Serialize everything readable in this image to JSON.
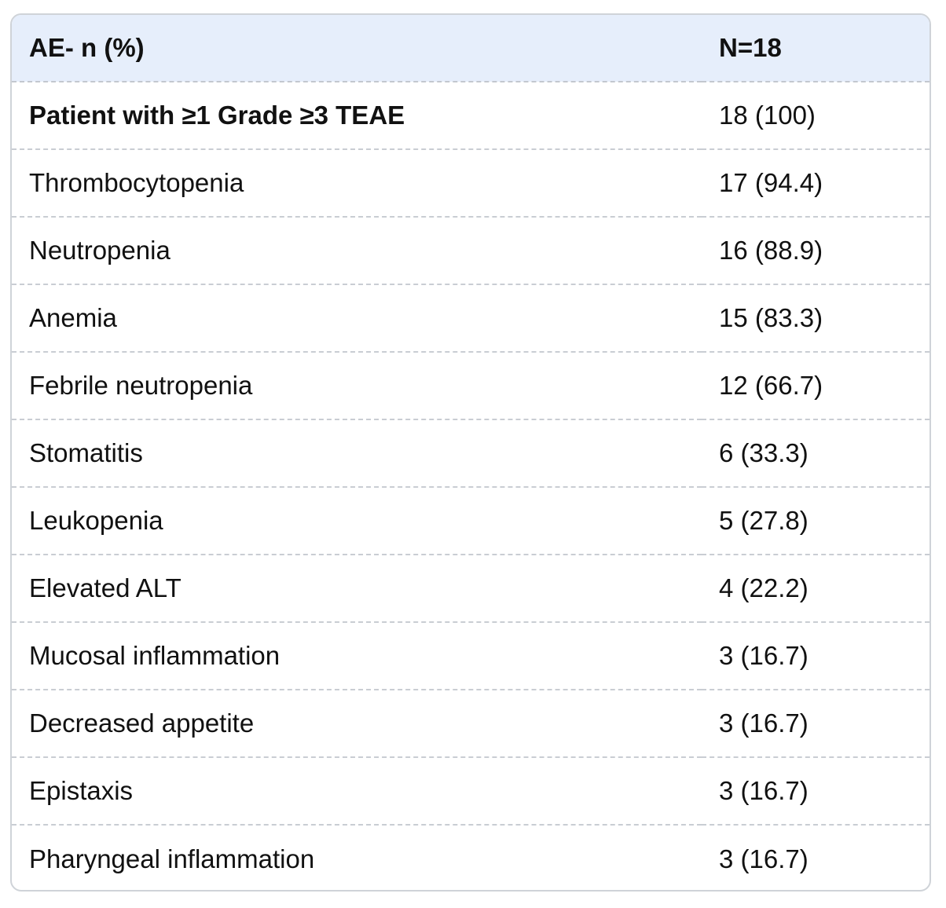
{
  "table": {
    "headers": [
      "AE- n (%)",
      "N=18"
    ],
    "rows": [
      {
        "label": "Patient with ≥1 Grade ≥3 TEAE",
        "value": "18 (100)",
        "bold": true
      },
      {
        "label": "Thrombocytopenia",
        "value": "17 (94.4)"
      },
      {
        "label": "Neutropenia",
        "value": "16 (88.9)"
      },
      {
        "label": "Anemia",
        "value": "15 (83.3)"
      },
      {
        "label": "Febrile neutropenia",
        "value": "12 (66.7)"
      },
      {
        "label": "Stomatitis",
        "value": "6 (33.3)"
      },
      {
        "label": "Leukopenia",
        "value": "5 (27.8)"
      },
      {
        "label": "Elevated ALT",
        "value": "4 (22.2)"
      },
      {
        "label": "Mucosal inflammation",
        "value": "3 (16.7)"
      },
      {
        "label": "Decreased appetite",
        "value": "3 (16.7)"
      },
      {
        "label": "Epistaxis",
        "value": "3 (16.7)"
      },
      {
        "label": "Pharyngeal inflammation",
        "value": "3 (16.7)"
      }
    ]
  },
  "colors": {
    "header_background": "#e6eefb",
    "border": "#cfd3d8",
    "row_divider": "#c9cdd3",
    "text": "#111111"
  }
}
